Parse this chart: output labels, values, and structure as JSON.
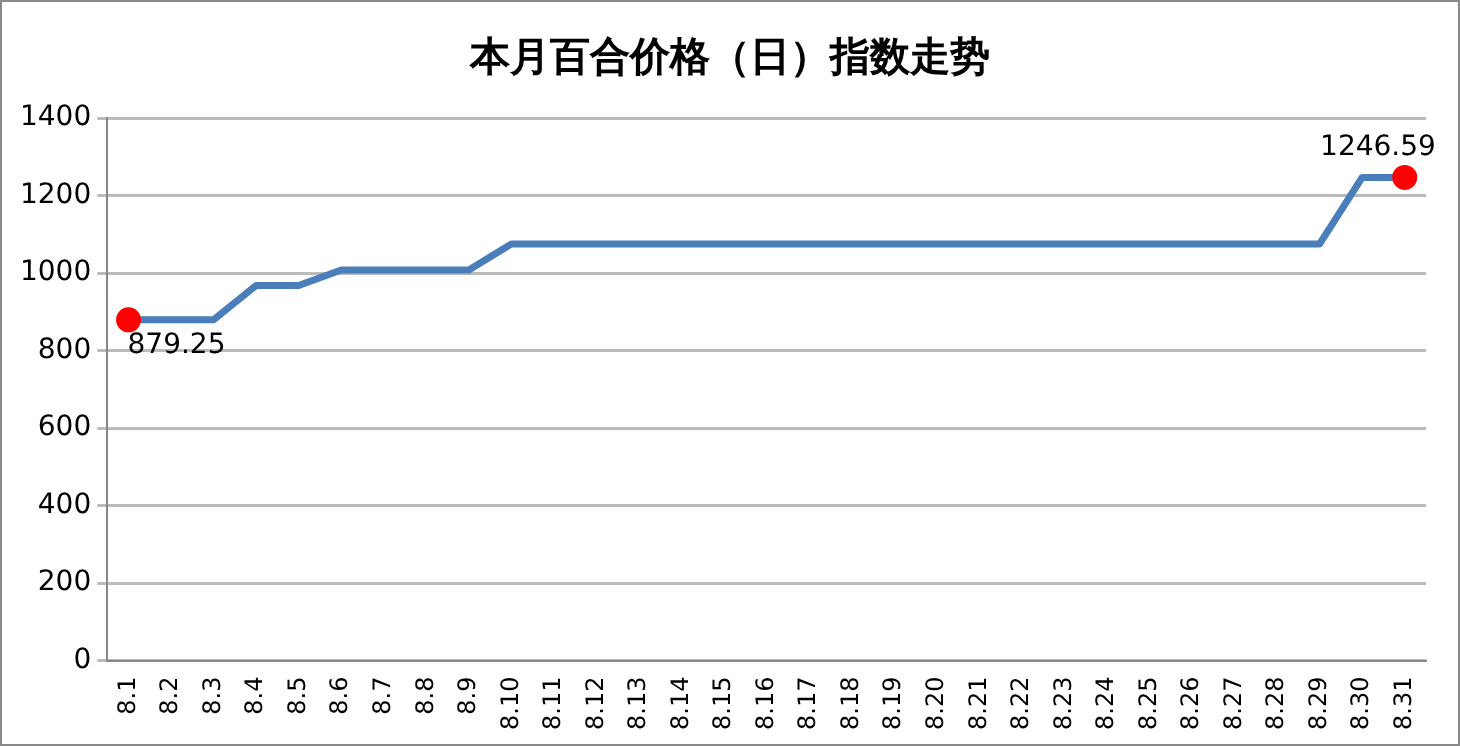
{
  "chart_data": {
    "type": "line",
    "title": "本月百合价格（日）指数走势",
    "categories": [
      "8.1",
      "8.2",
      "8.3",
      "8.4",
      "8.5",
      "8.6",
      "8.7",
      "8.8",
      "8.9",
      "8.10",
      "8.11",
      "8.12",
      "8.13",
      "8.14",
      "8.15",
      "8.16",
      "8.17",
      "8.18",
      "8.19",
      "8.20",
      "8.21",
      "8.22",
      "8.23",
      "8.24",
      "8.25",
      "8.26",
      "8.27",
      "8.28",
      "8.29",
      "8.30",
      "8.31"
    ],
    "series": [
      {
        "color": "#4a7ebb",
        "values": [
          879.25,
          879.25,
          879.25,
          968,
          968,
          1008,
          1008,
          1008,
          1008,
          1075,
          1075,
          1075,
          1075,
          1075,
          1075,
          1075,
          1075,
          1075,
          1075,
          1075,
          1075,
          1075,
          1075,
          1075,
          1075,
          1075,
          1075,
          1075,
          1075,
          1246.59,
          1246.59
        ],
        "value_labels": [
          "879.25",
          null,
          null,
          null,
          null,
          null,
          null,
          null,
          null,
          null,
          null,
          null,
          null,
          null,
          null,
          null,
          null,
          null,
          null,
          null,
          null,
          null,
          null,
          null,
          null,
          null,
          null,
          null,
          null,
          null,
          "1246.59"
        ]
      }
    ],
    "ylim": [
      0,
      1400
    ],
    "yticks": [
      0,
      200,
      400,
      600,
      800,
      1000,
      1200,
      1400
    ],
    "grid": "y",
    "legend": false,
    "line_style": "solid"
  }
}
